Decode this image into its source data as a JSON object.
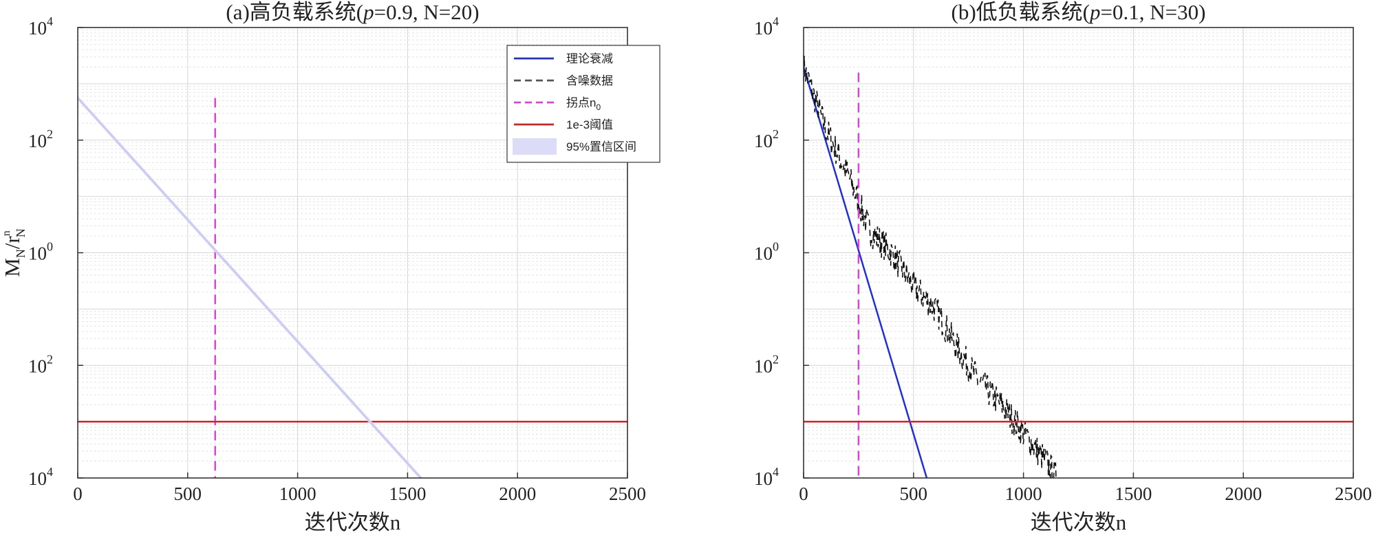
{
  "chart_data": [
    {
      "type": "line",
      "title": "(a)高负载系统(p=0.9, N=20)",
      "title_parts": {
        "pre": "(a)高负载系统(",
        "italic": "p",
        "post": "=0.9, N=20)"
      },
      "xlabel": "迭代次数n",
      "ylabel": {
        "main": "M",
        "sub1": "N",
        "slash": "/r",
        "sup": "n",
        "sub2": "N"
      },
      "xlim": [
        0,
        2500
      ],
      "x_ticks": [
        "0",
        "500",
        "1000",
        "1500",
        "2000",
        "2500"
      ],
      "y_log": true,
      "ylim_exp": [
        -4,
        4
      ],
      "y_tick_labels": [
        {
          "base": "10",
          "exp": "4"
        },
        {
          "base": "10",
          "exp": "2"
        },
        {
          "base": "10",
          "exp": "0"
        },
        {
          "base": "10",
          "exp": "2"
        },
        {
          "base": "10",
          "exp": "4"
        }
      ],
      "grid": true,
      "legend_position": "top-right",
      "series": [
        {
          "name": "理论衰减",
          "style": "solid",
          "color": "#1f2fd6",
          "x": [
            0,
            1560
          ],
          "y_log10": [
            2.75,
            -4.0
          ]
        },
        {
          "name": "含噪数据",
          "style": "dashed",
          "color": "#333333",
          "x": [
            0,
            1560
          ],
          "y_log10": [
            2.75,
            -4.0
          ]
        },
        {
          "name": "拐点n0",
          "style": "dashed",
          "color": "#e040e0",
          "x": [
            625,
            625
          ],
          "y_log10": [
            2.75,
            -4.0
          ]
        },
        {
          "name": "1e-3阈值",
          "style": "solid",
          "color": "#d62020",
          "x": [
            0,
            2500
          ],
          "y_log10": [
            -3.0,
            -3.0
          ]
        },
        {
          "name": "95%置信区间",
          "style": "band",
          "color": "#dcdcf8",
          "x": [
            0,
            1560
          ],
          "y_log10": [
            2.75,
            -4.0
          ]
        }
      ],
      "legend": [
        {
          "label": "理论衰减",
          "style": "solid",
          "color": "#1f2fd6"
        },
        {
          "label": "含噪数据",
          "style": "dashed",
          "color": "#555555"
        },
        {
          "label": "拐点n",
          "sub": "0",
          "style": "dashed",
          "color": "#e040e0"
        },
        {
          "label": "1e-3阈值",
          "style": "solid",
          "color": "#d62020"
        },
        {
          "label": "95%置信区间",
          "style": "band",
          "color": "#dcdcf8"
        }
      ]
    },
    {
      "type": "line",
      "title": "(b)低负载系统(p=0.1, N=30)",
      "title_parts": {
        "pre": "(b)低负载系统(",
        "italic": "p",
        "post": "=0.1, N=30)"
      },
      "xlabel": "迭代次数n",
      "xlim": [
        0,
        2500
      ],
      "x_ticks": [
        "0",
        "500",
        "1000",
        "1500",
        "2000",
        "2500"
      ],
      "y_log": true,
      "ylim_exp": [
        -4,
        4
      ],
      "y_tick_labels": [
        {
          "base": "10",
          "exp": "4"
        },
        {
          "base": "10",
          "exp": "2"
        },
        {
          "base": "10",
          "exp": "0"
        },
        {
          "base": "10",
          "exp": "2"
        },
        {
          "base": "10",
          "exp": "4"
        }
      ],
      "grid": true,
      "series": [
        {
          "name": "理论衰减",
          "style": "solid",
          "color": "#1f2fd6",
          "x": [
            0,
            560
          ],
          "y_log10": [
            3.3,
            -4.0
          ]
        },
        {
          "name": "含噪数据",
          "style": "dashed",
          "color": "#111111",
          "x": [
            0,
            100,
            200,
            300,
            400,
            500,
            600,
            700,
            800,
            900,
            1000,
            1100,
            1150
          ],
          "y_log10": [
            3.3,
            2.2,
            1.4,
            0.4,
            0.0,
            -0.6,
            -1.0,
            -1.7,
            -2.3,
            -2.7,
            -3.2,
            -3.7,
            -4.0
          ],
          "jitter": 0.55
        },
        {
          "name": "拐点n0",
          "style": "dashed",
          "color": "#e040e0",
          "x": [
            250,
            250
          ],
          "y_log10": [
            3.2,
            -4.0
          ]
        },
        {
          "name": "1e-3阈值",
          "style": "solid",
          "color": "#d62020",
          "x": [
            0,
            2500
          ],
          "y_log10": [
            -3.0,
            -3.0
          ]
        }
      ]
    }
  ]
}
